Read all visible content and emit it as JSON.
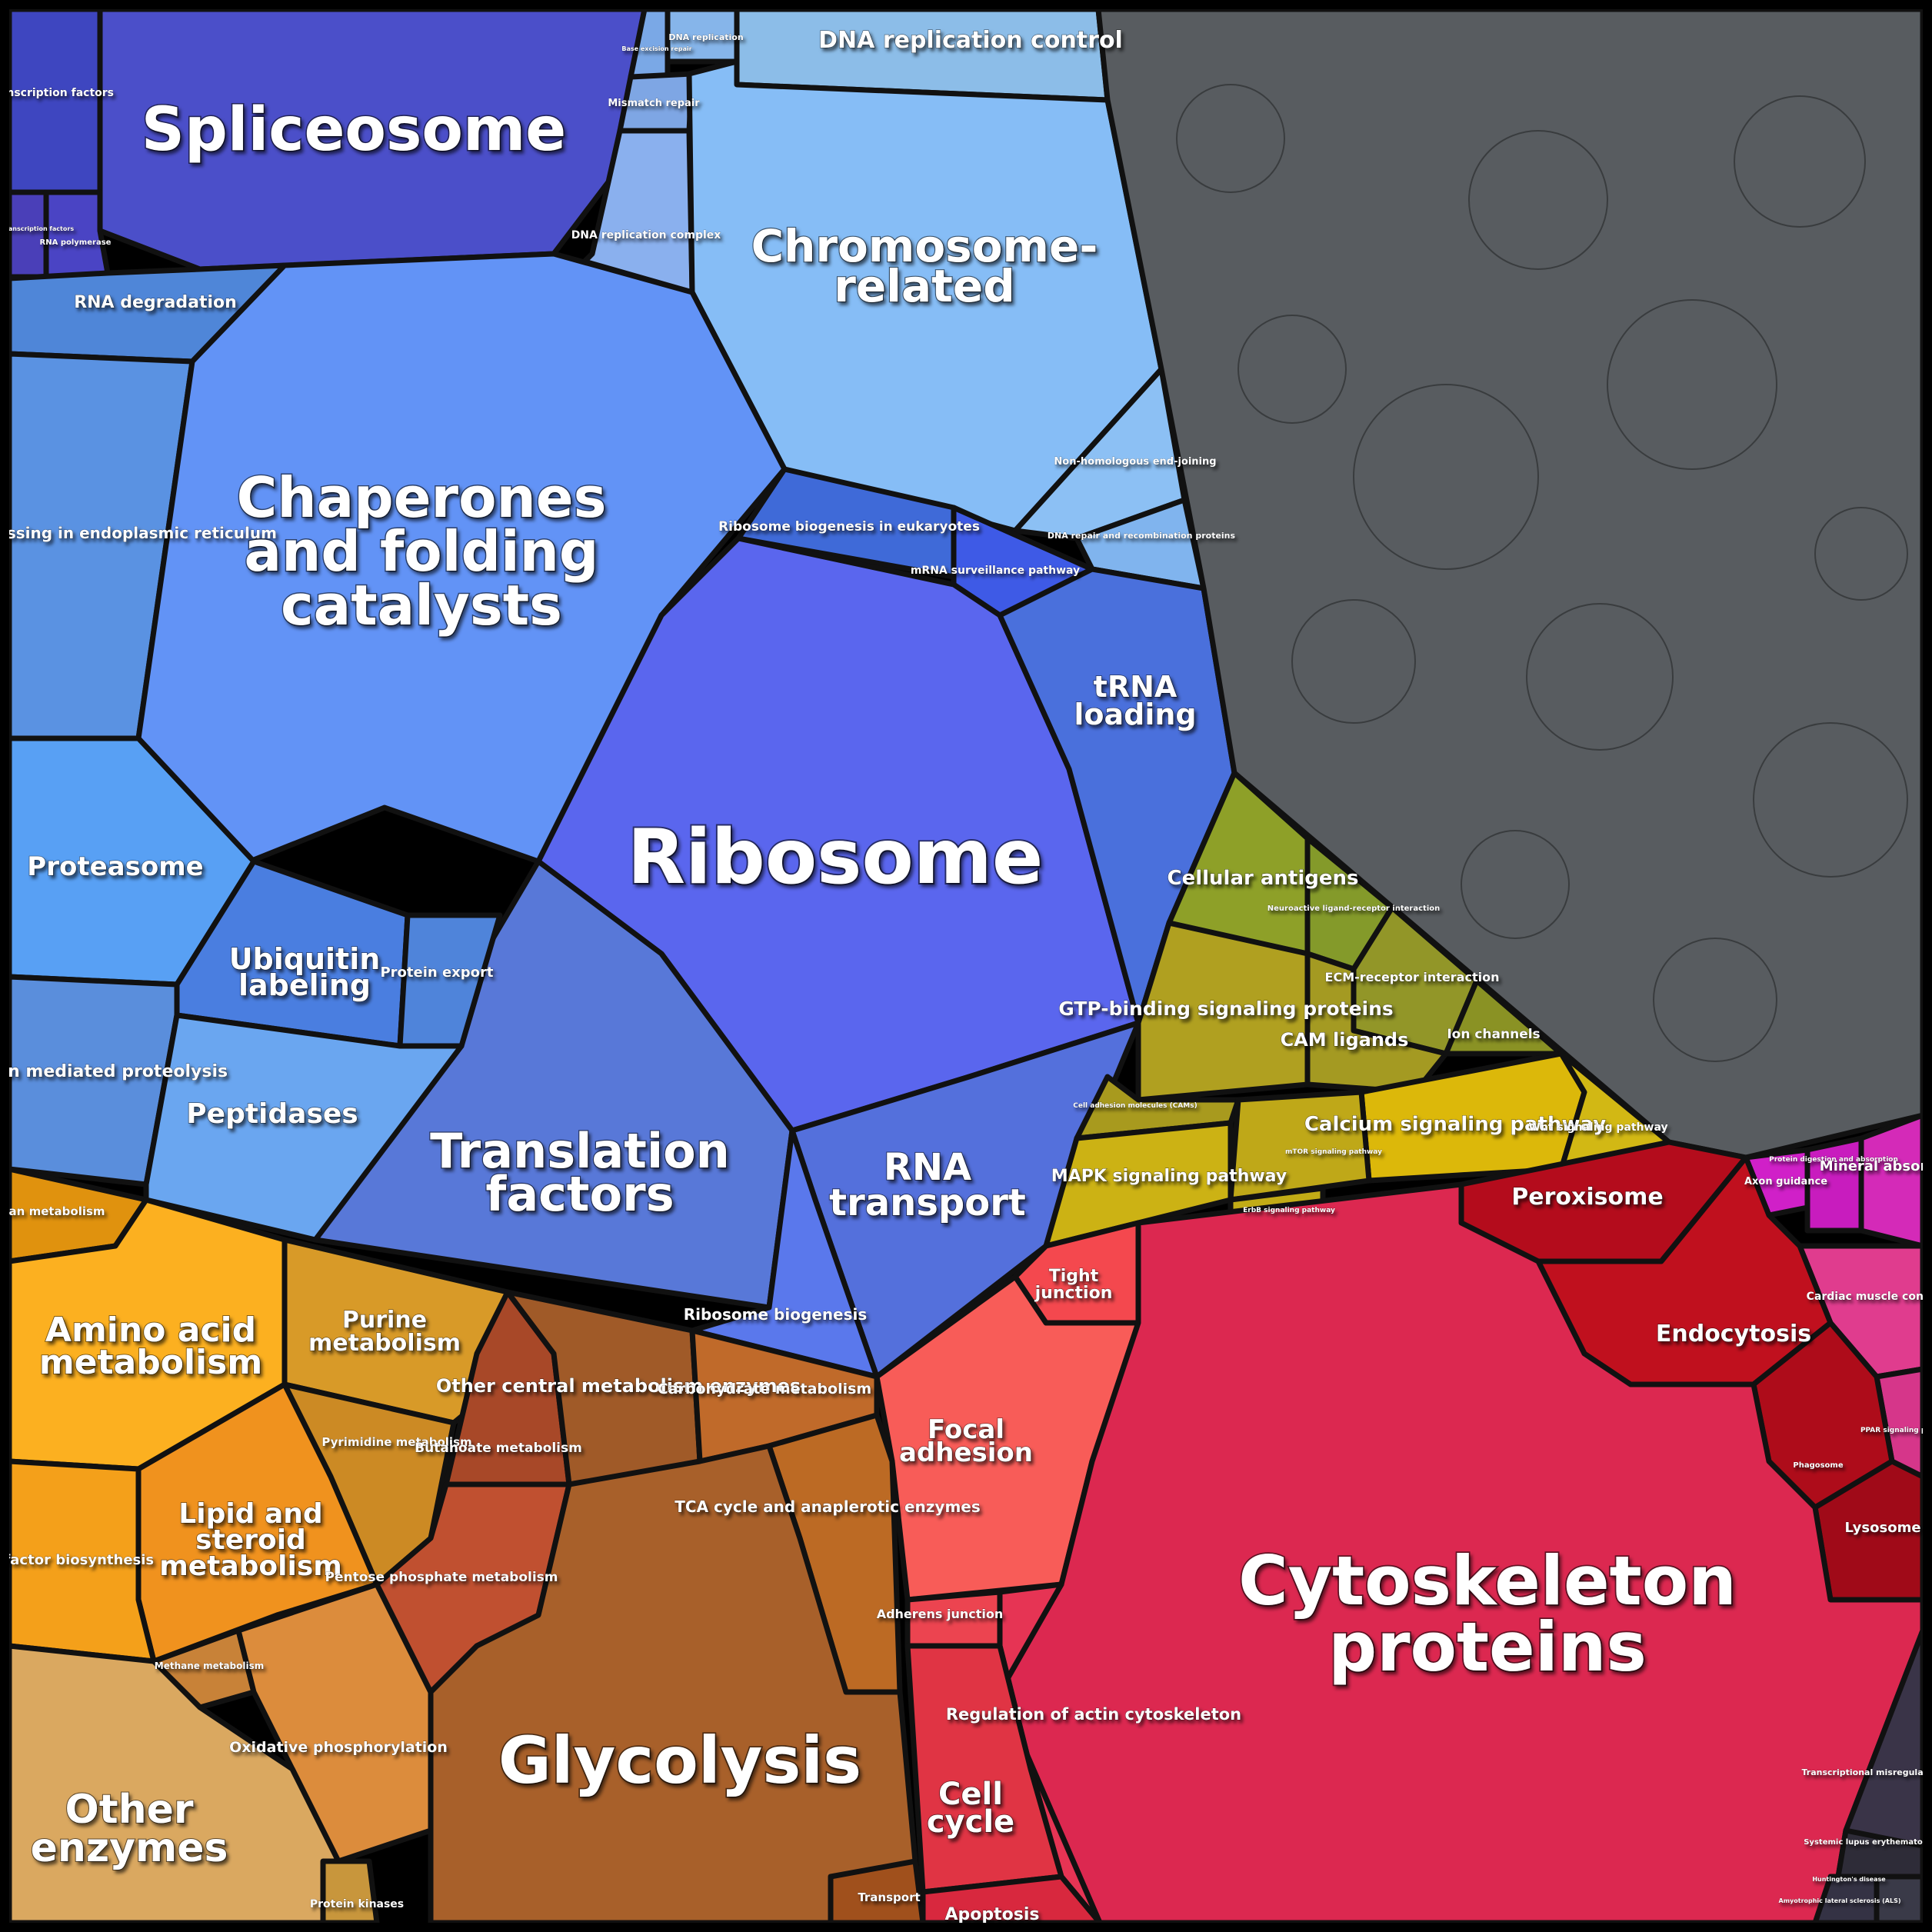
{
  "diagram": {
    "type": "voronoi-treemap",
    "regions": [
      {
        "id": "spliceosome",
        "color": "#4b4fc9",
        "labels": [
          {
            "text": "Spliceosome"
          }
        ]
      },
      {
        "id": "transcription-factors",
        "color": "#3e46c0",
        "labels": [
          {
            "text": "Transcription factors"
          }
        ]
      },
      {
        "id": "basal-transcription-factors",
        "color": "#4a3fb8",
        "labels": [
          {
            "text": "Basal transcription factors"
          }
        ]
      },
      {
        "id": "rna-polymerase",
        "color": "#4a44c4",
        "labels": [
          {
            "text": "RNA polymerase"
          }
        ]
      },
      {
        "id": "dna-replication-control",
        "color": "#8cbde8",
        "labels": [
          {
            "text": "DNA replication control"
          }
        ]
      },
      {
        "id": "dna-replication",
        "color": "#86b5ea",
        "labels": [
          {
            "text": "DNA replication"
          }
        ]
      },
      {
        "id": "base-excision-repair",
        "color": "#7aa8e6",
        "labels": [
          {
            "text": "Base excision repair"
          }
        ]
      },
      {
        "id": "mismatch-repair",
        "color": "#7ea6e4",
        "labels": [
          {
            "text": "Mismatch repair"
          }
        ]
      },
      {
        "id": "dna-replication-complex",
        "color": "#8ab0ee",
        "labels": [
          {
            "text": "DNA replication complex"
          }
        ]
      },
      {
        "id": "chromosome-related",
        "color": "#86bdf6",
        "labels": [
          {
            "text": "Chromosome-"
          },
          {
            "text": "related"
          }
        ]
      },
      {
        "id": "non-homologous-end-joining",
        "color": "#8cc0f4",
        "labels": [
          {
            "text": "Non-homologous end-joining"
          }
        ]
      },
      {
        "id": "dna-repair",
        "color": "#80b4ee",
        "labels": [
          {
            "text": "DNA repair and recombination proteins"
          }
        ]
      },
      {
        "id": "rna-degradation",
        "color": "#4f86d8",
        "labels": [
          {
            "text": "RNA degradation"
          }
        ]
      },
      {
        "id": "chaperones",
        "color": "#6293f6",
        "labels": [
          {
            "text": "Chaperones"
          },
          {
            "text": "and folding"
          },
          {
            "text": "catalysts"
          }
        ]
      },
      {
        "id": "protein-processing-er",
        "color": "#5a92e2",
        "labels": [
          {
            "text": "Protein processing in endoplasmic reticulum"
          }
        ]
      },
      {
        "id": "ribosome-biogenesis-eukaryotes",
        "color": "#3f6ad8",
        "labels": [
          {
            "text": "Ribosome biogenesis in eukaryotes"
          }
        ]
      },
      {
        "id": "mrna-surveillance",
        "color": "#3e5ae6",
        "labels": [
          {
            "text": "mRNA surveillance pathway"
          }
        ]
      },
      {
        "id": "ribosome",
        "color": "#5a66ee",
        "labels": [
          {
            "text": "Ribosome"
          }
        ]
      },
      {
        "id": "trna-loading",
        "color": "#4a70dc",
        "labels": [
          {
            "text": "tRNA"
          },
          {
            "text": "loading"
          }
        ]
      },
      {
        "id": "proteasome",
        "color": "#58a0f4",
        "labels": [
          {
            "text": "Proteasome"
          }
        ]
      },
      {
        "id": "ubiquitin-labeling",
        "color": "#4a7ee0",
        "labels": [
          {
            "text": "Ubiquitin"
          },
          {
            "text": "labeling"
          }
        ]
      },
      {
        "id": "protein-export",
        "color": "#4f84da",
        "labels": [
          {
            "text": "Protein export"
          }
        ]
      },
      {
        "id": "ubiquitin-proteolysis",
        "color": "#5a8edc",
        "labels": [
          {
            "text": "Ubiquitin mediated proteolysis"
          }
        ]
      },
      {
        "id": "peptidases",
        "color": "#6aa6f0",
        "labels": [
          {
            "text": "Peptidases"
          }
        ]
      },
      {
        "id": "translation-factors",
        "color": "#5878d8",
        "labels": [
          {
            "text": "Translation"
          },
          {
            "text": "factors"
          }
        ]
      },
      {
        "id": "rna-transport",
        "color": "#5470dc",
        "labels": [
          {
            "text": "RNA"
          },
          {
            "text": "transport"
          }
        ]
      },
      {
        "id": "ribosome-biogenesis",
        "color": "#5a78ec",
        "labels": [
          {
            "text": "Ribosome biogenesis"
          }
        ]
      },
      {
        "id": "unannotated",
        "color": "#585c60",
        "labels": []
      },
      {
        "id": "cellular-antigens",
        "color": "#8ea028",
        "labels": [
          {
            "text": "Cellular antigens"
          }
        ]
      },
      {
        "id": "neuroactive-ligand",
        "color": "#849a2a",
        "labels": [
          {
            "text": "Neuroactive ligand-receptor interaction"
          }
        ]
      },
      {
        "id": "ecm-receptor",
        "color": "#929628",
        "labels": [
          {
            "text": "ECM-receptor interaction"
          }
        ]
      },
      {
        "id": "gtp-binding",
        "color": "#b0a020",
        "labels": [
          {
            "text": "GTP-binding signaling proteins"
          }
        ]
      },
      {
        "id": "cam-ligands",
        "color": "#a49a22",
        "labels": [
          {
            "text": "CAM ligands"
          }
        ]
      },
      {
        "id": "ion-channels",
        "color": "#8a9224",
        "labels": [
          {
            "text": "Ion channels"
          }
        ]
      },
      {
        "id": "cell-adhesion-molecules",
        "color": "#a89a1e",
        "labels": [
          {
            "text": "Cell adhesion molecules (CAMs)"
          }
        ]
      },
      {
        "id": "calcium-signaling",
        "color": "#dcb80a",
        "labels": [
          {
            "text": "Calcium signaling pathway"
          }
        ]
      },
      {
        "id": "wnt-signaling",
        "color": "#d2b814",
        "labels": [
          {
            "text": "Wnt signaling pathway"
          }
        ]
      },
      {
        "id": "mapk-signaling",
        "color": "#ccb214",
        "labels": [
          {
            "text": "MAPK signaling pathway"
          }
        ]
      },
      {
        "id": "erbb-signaling",
        "color": "#c2ac16",
        "labels": [
          {
            "text": "ErbB signaling pathway"
          }
        ]
      },
      {
        "id": "mtor-signaling",
        "color": "#bfa818",
        "labels": [
          {
            "text": "mTOR signaling pathway"
          }
        ]
      },
      {
        "id": "axon-guidance",
        "color": "#d020c8",
        "labels": [
          {
            "text": "Axon guidance"
          }
        ]
      },
      {
        "id": "protein-digestion",
        "color": "#c81cbe",
        "labels": [
          {
            "text": "Protein digestion and absorption"
          }
        ]
      },
      {
        "id": "mineral-absorption",
        "color": "#d42ab8",
        "labels": [
          {
            "text": "Mineral absorption"
          }
        ]
      },
      {
        "id": "cardiac-muscle",
        "color": "#e03c8e",
        "labels": [
          {
            "text": "Cardiac muscle contraction"
          }
        ]
      },
      {
        "id": "ppar-signaling",
        "color": "#d6368a",
        "labels": [
          {
            "text": "PPAR signaling pathway"
          }
        ]
      },
      {
        "id": "peroxisome",
        "color": "#b40c1c",
        "labels": [
          {
            "text": "Peroxisome"
          }
        ]
      },
      {
        "id": "endocytosis",
        "color": "#c0101e",
        "labels": [
          {
            "text": "Endocytosis"
          }
        ]
      },
      {
        "id": "phagosome",
        "color": "#ae0c1a",
        "labels": [
          {
            "text": "Phagosome"
          }
        ]
      },
      {
        "id": "lysosome",
        "color": "#a00a18",
        "labels": [
          {
            "text": "Lysosome"
          }
        ]
      },
      {
        "id": "tight-junction",
        "color": "#f4484e",
        "labels": [
          {
            "text": "Tight"
          },
          {
            "text": "junction"
          }
        ]
      },
      {
        "id": "focal-adhesion",
        "color": "#f85c58",
        "labels": [
          {
            "text": "Focal"
          },
          {
            "text": "adhesion"
          }
        ]
      },
      {
        "id": "adherens-junction",
        "color": "#ec4450",
        "labels": [
          {
            "text": "Adherens junction"
          }
        ]
      },
      {
        "id": "cytoskeleton",
        "color": "#dc2850",
        "labels": [
          {
            "text": "Cytoskeleton"
          },
          {
            "text": "proteins"
          }
        ]
      },
      {
        "id": "regulation-actin",
        "color": "#e63454",
        "labels": [
          {
            "text": "Regulation of actin cytoskeleton"
          }
        ]
      },
      {
        "id": "cell-cycle",
        "color": "#e03444",
        "labels": [
          {
            "text": "Cell"
          },
          {
            "text": "cycle"
          }
        ]
      },
      {
        "id": "apoptosis",
        "color": "#d8283e",
        "labels": [
          {
            "text": "Apoptosis"
          }
        ]
      },
      {
        "id": "transcriptional-misregulation",
        "color": "#3a3448",
        "labels": [
          {
            "text": "Transcriptional misregulation in cancer"
          }
        ]
      },
      {
        "id": "systemic-lupus",
        "color": "#2e2c38",
        "labels": [
          {
            "text": "Systemic lupus erythematosus"
          }
        ]
      },
      {
        "id": "als",
        "color": "#3a3a48",
        "labels": [
          {
            "text": "Amyotrophic lateral sclerosis (ALS)"
          }
        ]
      },
      {
        "id": "huntingtons",
        "color": "#343244",
        "labels": [
          {
            "text": "Huntington's disease"
          }
        ]
      },
      {
        "id": "glycan-metabolism",
        "color": "#e0920e",
        "labels": [
          {
            "text": "Glycan metabolism"
          }
        ]
      },
      {
        "id": "amino-acid-metabolism",
        "color": "#fcb020",
        "labels": [
          {
            "text": "Amino acid"
          },
          {
            "text": "metabolism"
          }
        ]
      },
      {
        "id": "purine-metabolism",
        "color": "#d89a28",
        "labels": [
          {
            "text": "Purine"
          },
          {
            "text": "metabolism"
          }
        ]
      },
      {
        "id": "pyrimidine-metabolism",
        "color": "#cc8a24",
        "labels": [
          {
            "text": "Pyrimidine metabolism"
          }
        ]
      },
      {
        "id": "lipid-steroid",
        "color": "#f0921e",
        "labels": [
          {
            "text": "Lipid and"
          },
          {
            "text": "steroid"
          },
          {
            "text": "metabolism"
          }
        ]
      },
      {
        "id": "cofactor-biosynthesis",
        "color": "#f4a01a",
        "labels": [
          {
            "text": "Cofactor biosynthesis"
          }
        ]
      },
      {
        "id": "methane-metabolism",
        "color": "#c88238",
        "labels": [
          {
            "text": "Methane metabolism"
          }
        ]
      },
      {
        "id": "oxidative-phosphorylation",
        "color": "#dc8c3c",
        "labels": [
          {
            "text": "Oxidative phosphorylation"
          }
        ]
      },
      {
        "id": "other-enzymes",
        "color": "#daa860",
        "labels": [
          {
            "text": "Other"
          },
          {
            "text": "enzymes"
          }
        ]
      },
      {
        "id": "protein-kinases",
        "color": "#c8963c",
        "labels": [
          {
            "text": "Protein kinases"
          }
        ]
      },
      {
        "id": "butanoate-metabolism",
        "color": "#a84828",
        "labels": [
          {
            "text": "Butanoate metabolism"
          }
        ]
      },
      {
        "id": "pentose-phosphate",
        "color": "#c05030",
        "labels": [
          {
            "text": "Pentose phosphate metabolism"
          }
        ]
      },
      {
        "id": "other-central-metabolism",
        "color": "#a05a28",
        "labels": [
          {
            "text": "Other central metabolism enzymes"
          }
        ]
      },
      {
        "id": "carbohydrate-metabolism",
        "color": "#c06a2a",
        "labels": [
          {
            "text": "Carbohydrate metabolism"
          }
        ]
      },
      {
        "id": "tca-cycle",
        "color": "#bc6a24",
        "labels": [
          {
            "text": "TCA cycle and anaplerotic enzymes"
          }
        ]
      },
      {
        "id": "glycolysis",
        "color": "#a8602a",
        "labels": [
          {
            "text": "Glycolysis"
          }
        ]
      },
      {
        "id": "transport",
        "color": "#a0501c",
        "labels": [
          {
            "text": "Transport"
          }
        ]
      }
    ]
  }
}
